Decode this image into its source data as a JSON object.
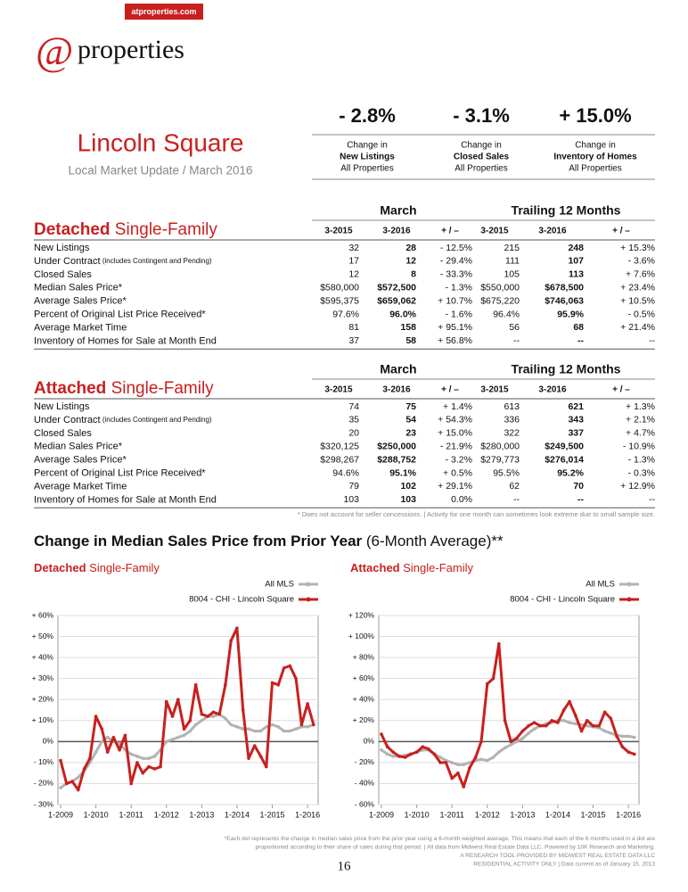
{
  "header": {
    "site": "atproperties.com",
    "logo_at": "@",
    "logo_word": "properties"
  },
  "title": "Lincoln Square",
  "subtitle": "Local Market Update / March 2016",
  "stats": [
    {
      "value": "- 2.8%",
      "lines": [
        "Change in",
        "New Listings",
        "All Properties"
      ]
    },
    {
      "value": "- 3.1%",
      "lines": [
        "Change in",
        "Closed Sales",
        "All Properties"
      ]
    },
    {
      "value": "+ 15.0%",
      "lines": [
        "Change in",
        "Inventory of Homes",
        "All Properties"
      ]
    }
  ],
  "tables": [
    {
      "heading_bold": "Detached",
      "heading_rest": " Single-Family",
      "groups": [
        "March",
        "Trailing 12 Months"
      ],
      "columns": [
        "3-2015",
        "3-2016",
        "+ / –",
        "3-2015",
        "3-2016",
        "+ / –"
      ],
      "rows": [
        {
          "label": "New Listings",
          "cells": [
            "32",
            "28",
            "- 12.5%",
            "215",
            "248",
            "+ 15.3%"
          ]
        },
        {
          "label": "Under Contract",
          "note": " (includes Contingent and Pending)",
          "cells": [
            "17",
            "12",
            "- 29.4%",
            "111",
            "107",
            "- 3.6%"
          ]
        },
        {
          "label": "Closed Sales",
          "cells": [
            "12",
            "8",
            "- 33.3%",
            "105",
            "113",
            "+ 7.6%"
          ]
        },
        {
          "label": "Median Sales Price*",
          "cells": [
            "$580,000",
            "$572,500",
            "- 1.3%",
            "$550,000",
            "$678,500",
            "+ 23.4%"
          ]
        },
        {
          "label": "Average Sales Price*",
          "cells": [
            "$595,375",
            "$659,062",
            "+ 10.7%",
            "$675,220",
            "$746,063",
            "+ 10.5%"
          ]
        },
        {
          "label": "Percent of Original List Price Received*",
          "cells": [
            "97.6%",
            "96.0%",
            "- 1.6%",
            "96.4%",
            "95.9%",
            "- 0.5%"
          ]
        },
        {
          "label": "Average Market Time",
          "cells": [
            "81",
            "158",
            "+ 95.1%",
            "56",
            "68",
            "+ 21.4%"
          ]
        },
        {
          "label": "Inventory of Homes for Sale at Month End",
          "cells": [
            "37",
            "58",
            "+ 56.8%",
            "--",
            "--",
            "--"
          ]
        }
      ]
    },
    {
      "heading_bold": "Attached",
      "heading_rest": " Single-Family",
      "groups": [
        "March",
        "Trailing 12 Months"
      ],
      "columns": [
        "3-2015",
        "3-2016",
        "+ / –",
        "3-2015",
        "3-2016",
        "+ / –"
      ],
      "rows": [
        {
          "label": "New Listings",
          "cells": [
            "74",
            "75",
            "+ 1.4%",
            "613",
            "621",
            "+ 1.3%"
          ]
        },
        {
          "label": "Under Contract",
          "note": " (includes Contingent and Pending)",
          "cells": [
            "35",
            "54",
            "+ 54.3%",
            "336",
            "343",
            "+ 2.1%"
          ]
        },
        {
          "label": "Closed Sales",
          "cells": [
            "20",
            "23",
            "+ 15.0%",
            "322",
            "337",
            "+ 4.7%"
          ]
        },
        {
          "label": "Median Sales Price*",
          "cells": [
            "$320,125",
            "$250,000",
            "- 21.9%",
            "$280,000",
            "$249,500",
            "- 10.9%"
          ]
        },
        {
          "label": "Average Sales Price*",
          "cells": [
            "$298,267",
            "$288,752",
            "- 3.2%",
            "$279,773",
            "$276,014",
            "- 1.3%"
          ]
        },
        {
          "label": "Percent of Original List Price Received*",
          "cells": [
            "94.6%",
            "95.1%",
            "+ 0.5%",
            "95.5%",
            "95.2%",
            "- 0.3%"
          ]
        },
        {
          "label": "Average Market Time",
          "cells": [
            "79",
            "102",
            "+ 29.1%",
            "62",
            "70",
            "+ 12.9%"
          ]
        },
        {
          "label": "Inventory of Homes for Sale at Month End",
          "cells": [
            "103",
            "103",
            "0.0%",
            "--",
            "--",
            "--"
          ]
        }
      ]
    }
  ],
  "table_note": "* Does not account for seller concessions.  |  Activity for one month can sometimes look extreme due to small sample size.",
  "section_title_bold": "Change in Median Sales Price from Prior Year",
  "section_title_rest": " (6-Month Average)**",
  "chart_data": [
    {
      "type": "line",
      "title_bold": "Detached",
      "title_rest": " Single-Family",
      "x": [
        2009,
        2009.17,
        2009.33,
        2009.5,
        2009.67,
        2009.83,
        2010,
        2010.17,
        2010.33,
        2010.5,
        2010.67,
        2010.83,
        2011,
        2011.17,
        2011.33,
        2011.5,
        2011.67,
        2011.83,
        2012,
        2012.17,
        2012.33,
        2012.5,
        2012.67,
        2012.83,
        2013,
        2013.17,
        2013.33,
        2013.5,
        2013.67,
        2013.83,
        2014,
        2014.17,
        2014.33,
        2014.5,
        2014.67,
        2014.83,
        2015,
        2015.17,
        2015.33,
        2015.5,
        2015.67,
        2015.83,
        2016,
        2016.17
      ],
      "xlim": [
        2009,
        2016.3
      ],
      "xticks": [
        {
          "value": 2009,
          "label": "1-2009"
        },
        {
          "value": 2010,
          "label": "1-2010"
        },
        {
          "value": 2011,
          "label": "1-2011"
        },
        {
          "value": 2012,
          "label": "1-2012"
        },
        {
          "value": 2013,
          "label": "1-2013"
        },
        {
          "value": 2014,
          "label": "1-2014"
        },
        {
          "value": 2015,
          "label": "1-2015"
        },
        {
          "value": 2016,
          "label": "1-2016"
        }
      ],
      "ylim": [
        -30,
        60
      ],
      "yticks": [
        {
          "value": -30,
          "label": "- 30%"
        },
        {
          "value": -20,
          "label": "- 20%"
        },
        {
          "value": -10,
          "label": "- 10%"
        },
        {
          "value": 0,
          "label": "0%"
        },
        {
          "value": 10,
          "label": "+ 10%"
        },
        {
          "value": 20,
          "label": "+ 20%"
        },
        {
          "value": 30,
          "label": "+ 30%"
        },
        {
          "value": 40,
          "label": "+ 40%"
        },
        {
          "value": 50,
          "label": "+ 50%"
        },
        {
          "value": 60,
          "label": "+ 60%"
        }
      ],
      "series": [
        {
          "name": "All MLS",
          "color": "#b3b3b3",
          "values": [
            -22,
            -20,
            -19,
            -17,
            -14,
            -10,
            -5,
            0,
            2,
            0,
            -1,
            -4,
            -6,
            -7,
            -8,
            -8,
            -7,
            -4,
            0,
            1,
            2,
            3,
            5,
            8,
            10,
            12,
            12,
            13,
            11,
            8,
            7,
            6,
            6,
            5,
            5,
            7,
            8,
            7,
            5,
            5,
            6,
            7,
            7,
            8
          ]
        },
        {
          "name": "8004 - CHI - Lincoln Square",
          "color": "#c8201e",
          "values": [
            -9,
            -20,
            -19,
            -23,
            -13,
            -8,
            12,
            6,
            -5,
            2,
            -4,
            3,
            -20,
            -10,
            -15,
            -12,
            -13,
            -12,
            19,
            12,
            20,
            6,
            10,
            27,
            13,
            12,
            14,
            13,
            27,
            48,
            54,
            15,
            -8,
            -2,
            -7,
            -12,
            28,
            27,
            35,
            36,
            30,
            8,
            18,
            8
          ]
        }
      ]
    },
    {
      "type": "line",
      "title_bold": "Attached",
      "title_rest": " Single-Family",
      "x": [
        2009,
        2009.17,
        2009.33,
        2009.5,
        2009.67,
        2009.83,
        2010,
        2010.17,
        2010.33,
        2010.5,
        2010.67,
        2010.83,
        2011,
        2011.17,
        2011.33,
        2011.5,
        2011.67,
        2011.83,
        2012,
        2012.17,
        2012.33,
        2012.5,
        2012.67,
        2012.83,
        2013,
        2013.17,
        2013.33,
        2013.5,
        2013.67,
        2013.83,
        2014,
        2014.17,
        2014.33,
        2014.5,
        2014.67,
        2014.83,
        2015,
        2015.17,
        2015.33,
        2015.5,
        2015.67,
        2015.83,
        2016,
        2016.17
      ],
      "xlim": [
        2009,
        2016.3
      ],
      "xticks": [
        {
          "value": 2009,
          "label": "1-2009"
        },
        {
          "value": 2010,
          "label": "1-2010"
        },
        {
          "value": 2011,
          "label": "1-2011"
        },
        {
          "value": 2012,
          "label": "1-2012"
        },
        {
          "value": 2013,
          "label": "1-2013"
        },
        {
          "value": 2014,
          "label": "1-2014"
        },
        {
          "value": 2015,
          "label": "1-2015"
        },
        {
          "value": 2016,
          "label": "1-2016"
        }
      ],
      "ylim": [
        -60,
        120
      ],
      "yticks": [
        {
          "value": -60,
          "label": "- 60%"
        },
        {
          "value": -40,
          "label": "- 40%"
        },
        {
          "value": -20,
          "label": "- 20%"
        },
        {
          "value": 0,
          "label": "0%"
        },
        {
          "value": 20,
          "label": "+ 20%"
        },
        {
          "value": 40,
          "label": "+ 40%"
        },
        {
          "value": 60,
          "label": "+ 60%"
        },
        {
          "value": 80,
          "label": "+ 80%"
        },
        {
          "value": 100,
          "label": "+ 100%"
        },
        {
          "value": 120,
          "label": "+ 120%"
        }
      ],
      "series": [
        {
          "name": "All MLS",
          "color": "#b3b3b3",
          "values": [
            -8,
            -12,
            -14,
            -14,
            -13,
            -12,
            -10,
            -8,
            -8,
            -12,
            -15,
            -18,
            -20,
            -22,
            -22,
            -20,
            -18,
            -17,
            -18,
            -15,
            -10,
            -6,
            -3,
            0,
            3,
            8,
            12,
            15,
            17,
            18,
            20,
            20,
            18,
            17,
            16,
            15,
            14,
            13,
            10,
            8,
            6,
            5,
            5,
            4
          ]
        },
        {
          "name": "8004 - CHI - Lincoln Square",
          "color": "#c8201e",
          "values": [
            7,
            -5,
            -10,
            -14,
            -15,
            -12,
            -10,
            -5,
            -7,
            -12,
            -20,
            -20,
            -35,
            -30,
            -43,
            -25,
            -15,
            0,
            55,
            60,
            93,
            20,
            0,
            3,
            10,
            15,
            18,
            15,
            15,
            20,
            18,
            30,
            38,
            25,
            10,
            20,
            15,
            15,
            28,
            22,
            5,
            -5,
            -10,
            -12
          ]
        }
      ]
    }
  ],
  "footer": {
    "lines": [
      "*Each dot represents the change in median sales price from the prior year using a 6-month weighted average. This means that each of the 6 months used in a dot are",
      "proportioned according to their share of sales during that period.  |  All data from Midwest Real Estate Data LLC. Powered by 10K Research and Marketing.",
      "A RESEARCH TOOL PROVIDED BY MIDWEST REAL ESTATE DATA LLC",
      "RESIDENTIAL ACTIVITY ONLY  |  Data current as of January 15, 2013"
    ],
    "page": "16"
  }
}
